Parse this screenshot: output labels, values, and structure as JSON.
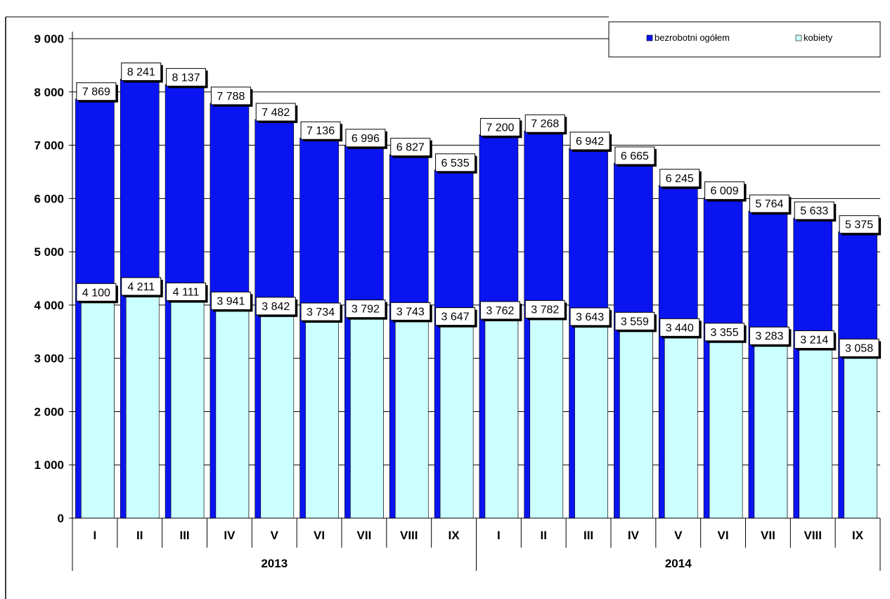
{
  "chart_data": {
    "type": "bar",
    "ylim": [
      0,
      9000
    ],
    "yticks": [
      "0",
      "1 000",
      "2 000",
      "3 000",
      "4 000",
      "5 000",
      "6 000",
      "7 000",
      "8 000",
      "9 000"
    ],
    "ytick_values": [
      0,
      1000,
      2000,
      3000,
      4000,
      5000,
      6000,
      7000,
      8000,
      9000
    ],
    "grid": true,
    "legend_position": "top-right",
    "categories": [
      "I",
      "II",
      "III",
      "IV",
      "V",
      "VI",
      "VII",
      "VIII",
      "IX",
      "I",
      "II",
      "III",
      "IV",
      "V",
      "VI",
      "VII",
      "VIII",
      "IX"
    ],
    "groups": [
      {
        "label": "2013",
        "count": 9
      },
      {
        "label": "2014",
        "count": 9
      }
    ],
    "series": [
      {
        "name": "bezrobotni ogółem",
        "color": "#0a14f0",
        "values": [
          7869,
          8241,
          8137,
          7788,
          7482,
          7136,
          6996,
          6827,
          6535,
          7200,
          7268,
          6942,
          6665,
          6245,
          6009,
          5764,
          5633,
          5375
        ],
        "labels": [
          "7 869",
          "8 241",
          "8 137",
          "7 788",
          "7 482",
          "7 136",
          "6 996",
          "6 827",
          "6 535",
          "7 200",
          "7 268",
          "6 942",
          "6 665",
          "6 245",
          "6 009",
          "5 764",
          "5 633",
          "5 375"
        ]
      },
      {
        "name": "kobiety",
        "color": "#ccffff",
        "values": [
          4100,
          4211,
          4111,
          3941,
          3842,
          3734,
          3792,
          3743,
          3647,
          3762,
          3782,
          3643,
          3559,
          3440,
          3355,
          3283,
          3214,
          3058
        ],
        "labels": [
          "4 100",
          "4 211",
          "4 111",
          "3 941",
          "3 842",
          "3 734",
          "3 792",
          "3 743",
          "3 647",
          "3 762",
          "3 782",
          "3 643",
          "3 559",
          "3 440",
          "3 355",
          "3 283",
          "3 214",
          "3 058"
        ]
      }
    ]
  }
}
